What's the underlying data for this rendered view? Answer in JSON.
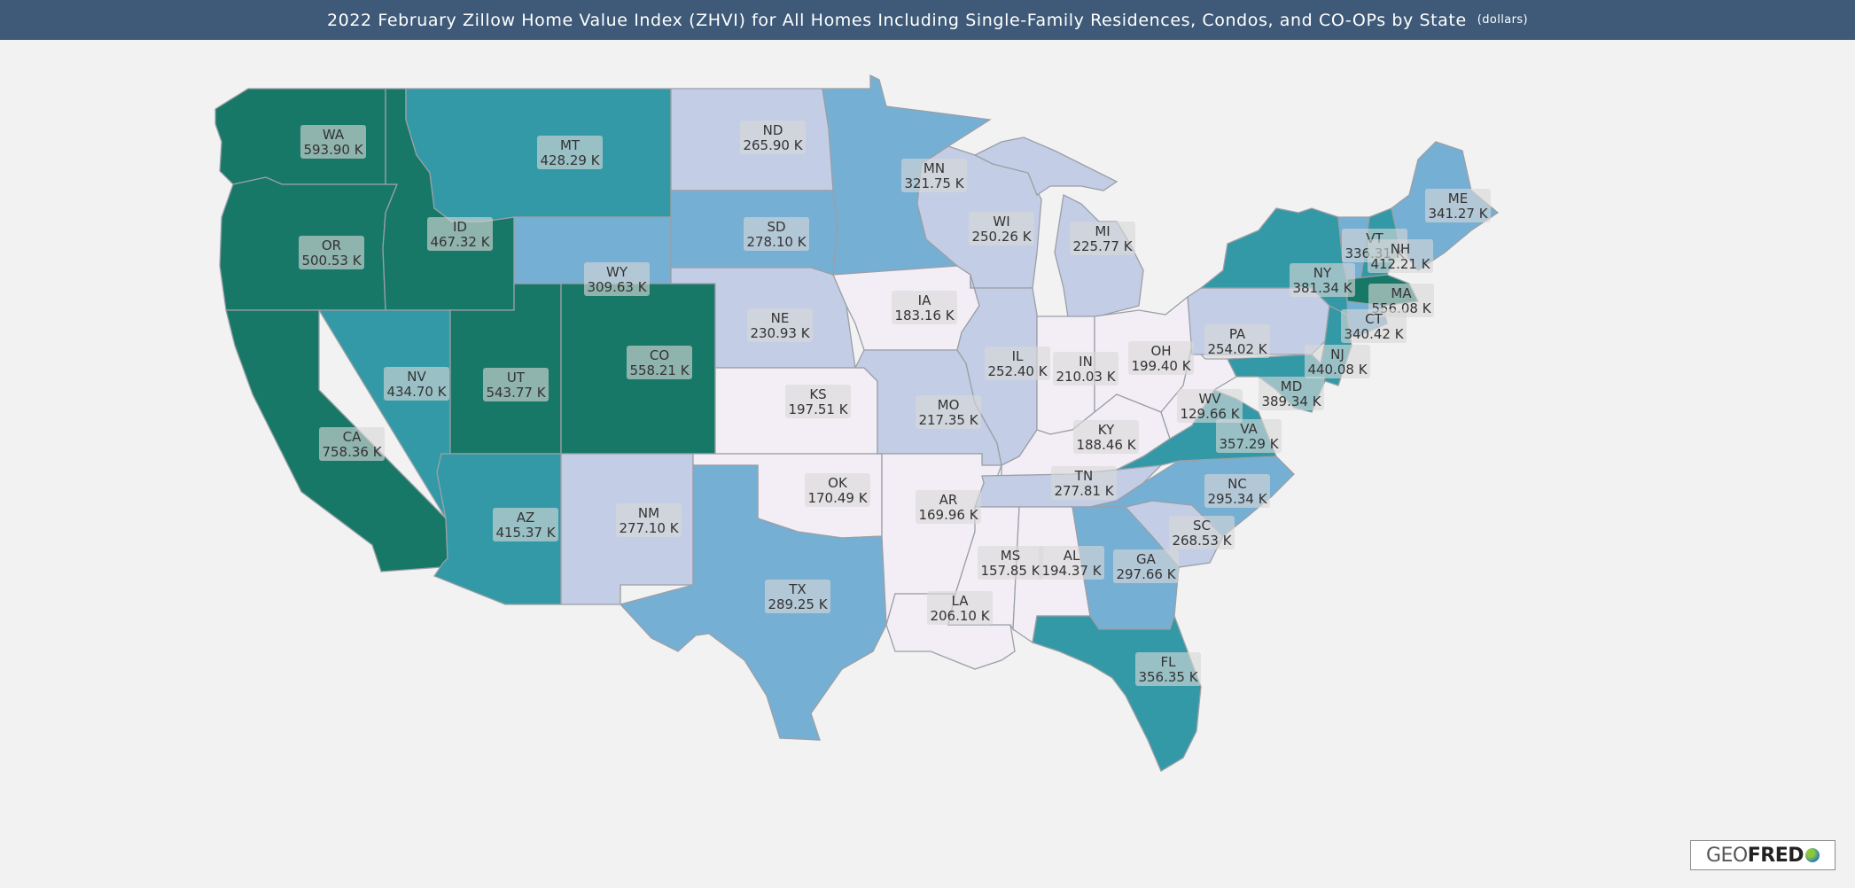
{
  "header": {
    "title": "2022 February Zillow Home Value Index (ZHVI) for All Homes Including Single-Family Residences, Condos, and CO-OPs by State",
    "units": "(dollars)"
  },
  "colors": {
    "background": "#f2f2f2",
    "header": "#3e5a78",
    "bin_lowest": "#f3eef5",
    "bin_low": "#c3cde5",
    "bin_mid": "#76afd4",
    "bin_high": "#3399a6",
    "bin_highest": "#187868"
  },
  "logo": {
    "geo": "GEO",
    "fred": "FRED",
    "icon": "globe-icon"
  },
  "states": [
    {
      "abbr": "WA",
      "value": "593.90 K",
      "bin": "highest"
    },
    {
      "abbr": "OR",
      "value": "500.53 K",
      "bin": "highest"
    },
    {
      "abbr": "CA",
      "value": "758.36 K",
      "bin": "highest"
    },
    {
      "abbr": "ID",
      "value": "467.32 K",
      "bin": "highest"
    },
    {
      "abbr": "NV",
      "value": "434.70 K",
      "bin": "high"
    },
    {
      "abbr": "UT",
      "value": "543.77 K",
      "bin": "highest"
    },
    {
      "abbr": "AZ",
      "value": "415.37 K",
      "bin": "high"
    },
    {
      "abbr": "MT",
      "value": "428.29 K",
      "bin": "high"
    },
    {
      "abbr": "WY",
      "value": "309.63 K",
      "bin": "mid"
    },
    {
      "abbr": "CO",
      "value": "558.21 K",
      "bin": "highest"
    },
    {
      "abbr": "NM",
      "value": "277.10 K",
      "bin": "low"
    },
    {
      "abbr": "ND",
      "value": "265.90 K",
      "bin": "low"
    },
    {
      "abbr": "SD",
      "value": "278.10 K",
      "bin": "mid"
    },
    {
      "abbr": "NE",
      "value": "230.93 K",
      "bin": "low"
    },
    {
      "abbr": "KS",
      "value": "197.51 K",
      "bin": "lowest"
    },
    {
      "abbr": "OK",
      "value": "170.49 K",
      "bin": "lowest"
    },
    {
      "abbr": "TX",
      "value": "289.25 K",
      "bin": "mid"
    },
    {
      "abbr": "MN",
      "value": "321.75 K",
      "bin": "mid"
    },
    {
      "abbr": "IA",
      "value": "183.16 K",
      "bin": "lowest"
    },
    {
      "abbr": "MO",
      "value": "217.35 K",
      "bin": "low"
    },
    {
      "abbr": "AR",
      "value": "169.96 K",
      "bin": "lowest"
    },
    {
      "abbr": "LA",
      "value": "206.10 K",
      "bin": "lowest"
    },
    {
      "abbr": "WI",
      "value": "250.26 K",
      "bin": "low"
    },
    {
      "abbr": "IL",
      "value": "252.40 K",
      "bin": "low"
    },
    {
      "abbr": "MI",
      "value": "225.77 K",
      "bin": "low"
    },
    {
      "abbr": "IN",
      "value": "210.03 K",
      "bin": "lowest"
    },
    {
      "abbr": "OH",
      "value": "199.40 K",
      "bin": "lowest"
    },
    {
      "abbr": "KY",
      "value": "188.46 K",
      "bin": "lowest"
    },
    {
      "abbr": "TN",
      "value": "277.81 K",
      "bin": "low"
    },
    {
      "abbr": "MS",
      "value": "157.85 K",
      "bin": "lowest"
    },
    {
      "abbr": "AL",
      "value": "194.37 K",
      "bin": "lowest"
    },
    {
      "abbr": "GA",
      "value": "297.66 K",
      "bin": "mid"
    },
    {
      "abbr": "FL",
      "value": "356.35 K",
      "bin": "high"
    },
    {
      "abbr": "SC",
      "value": "268.53 K",
      "bin": "low"
    },
    {
      "abbr": "NC",
      "value": "295.34 K",
      "bin": "mid"
    },
    {
      "abbr": "VA",
      "value": "357.29 K",
      "bin": "high"
    },
    {
      "abbr": "WV",
      "value": "129.66 K",
      "bin": "lowest"
    },
    {
      "abbr": "PA",
      "value": "254.02 K",
      "bin": "low"
    },
    {
      "abbr": "NY",
      "value": "381.34 K",
      "bin": "high"
    },
    {
      "abbr": "MD",
      "value": "389.34 K",
      "bin": "high"
    },
    {
      "abbr": "NJ",
      "value": "440.08 K",
      "bin": "high"
    },
    {
      "abbr": "VT",
      "value": "336.31 K",
      "bin": "mid"
    },
    {
      "abbr": "NH",
      "value": "412.21 K",
      "bin": "high"
    },
    {
      "abbr": "MA",
      "value": "556.08 K",
      "bin": "highest"
    },
    {
      "abbr": "CT",
      "value": "340.42 K",
      "bin": "mid"
    },
    {
      "abbr": "ME",
      "value": "341.27 K",
      "bin": "mid"
    }
  ]
}
